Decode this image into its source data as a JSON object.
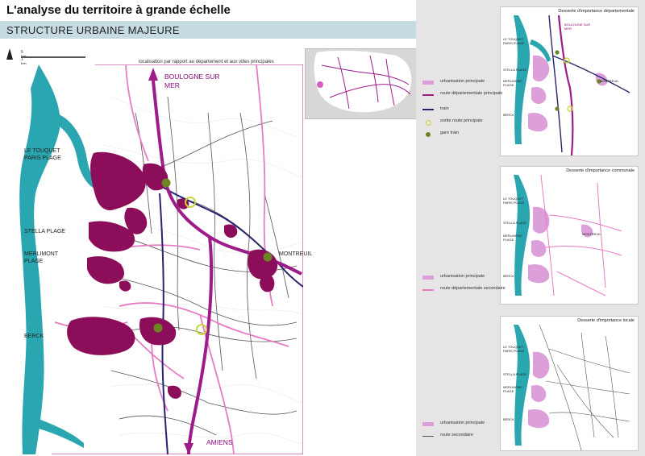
{
  "header": {
    "title": "L'analyse du territoire à grande échelle",
    "section_title": "STRUCTURE URBAINE MAJEURE"
  },
  "scale": {
    "line1": "5 km",
    "line2": "1 km"
  },
  "inset": {
    "caption": "localisation par rapport au département  et aux villes principales"
  },
  "main_map": {
    "places": {
      "boulogne": "BOULOGNE SUR MER",
      "le_touquet": "LE TOUQUET PARIS PLAGE",
      "stella": "STELLA PLAGE",
      "merlimont": "MERLIMONT PLAGE",
      "berck": "BERCK",
      "montreuil": "MONTREUIL",
      "amiens": "AMIENS"
    }
  },
  "panels": [
    {
      "title": "Desserte d'importance départementale",
      "legend": [
        {
          "label": "urbanisation principale",
          "swatch": "urban"
        },
        {
          "label": "route départementale principale",
          "swatch": "road-main"
        },
        {
          "label": "train",
          "swatch": "train"
        },
        {
          "label": "sortie route principale",
          "swatch": "exit"
        },
        {
          "label": "gare train",
          "swatch": "station"
        }
      ],
      "map_labels": [
        "LE TOUQUET PARIS PLAGE",
        "BOULOGNE SUR MER",
        "STELLA PLAGE",
        "MERLIMONT PLAGE",
        "MONTREUIL",
        "BERCK"
      ]
    },
    {
      "title": "Desserte d'importance communale",
      "legend": [
        {
          "label": "urbanisation principale",
          "swatch": "urban"
        },
        {
          "label": "route départementale secondaire",
          "swatch": "road-secondary"
        }
      ],
      "map_labels": [
        "LE TOUQUET PARIS PLAGE",
        "STELLA PLAGE",
        "MERLIMONT PLAGE",
        "MONTREUIL",
        "BERCK"
      ]
    },
    {
      "title": "Desserte d'importance locale",
      "legend": [
        {
          "label": "urbanisation principale",
          "swatch": "urban"
        },
        {
          "label": "route secondaire",
          "swatch": "road-local"
        }
      ],
      "map_labels": [
        "LE TOUQUET PARIS PLAGE",
        "STELLA PLAGE",
        "MERLIMONT PLAGE",
        "BERCK"
      ]
    }
  ],
  "colors": {
    "urban": "#8c0e5a",
    "road_main": "#9e1b8a",
    "road_secondary": "#e77bc4",
    "sea": "#2aa6b0",
    "train": "#26246e",
    "exit": "#c8d63a",
    "station": "#6b8520",
    "urban_light": "#dc9fd9"
  }
}
